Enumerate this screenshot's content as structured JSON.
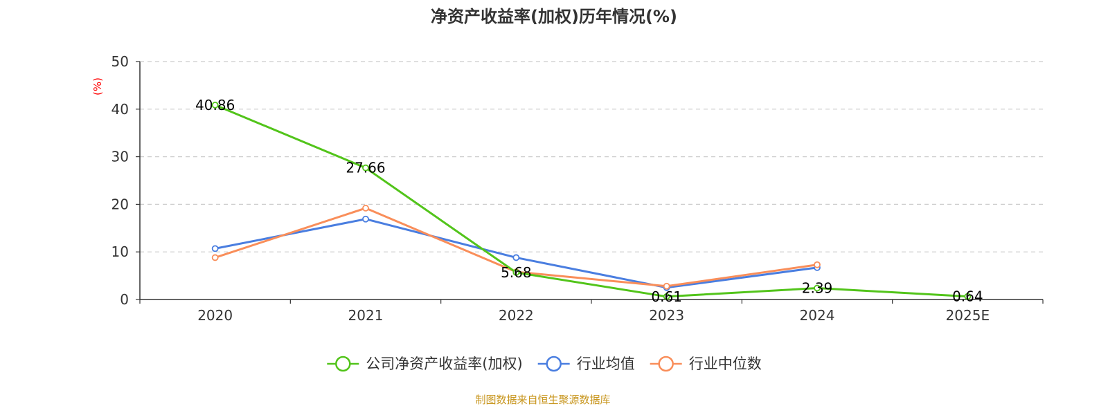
{
  "chart_data": {
    "type": "line",
    "title": "净资产收益率(加权)历年情况(%)",
    "ylabel": "(%)",
    "xlabel": "",
    "categories": [
      "2020",
      "2021",
      "2022",
      "2023",
      "2024",
      "2025E"
    ],
    "ylim": [
      0,
      50
    ],
    "yticks": [
      "0",
      "10",
      "20",
      "30",
      "40",
      "50"
    ],
    "grid": true,
    "legend_position": "bottom-center",
    "series": [
      {
        "name": "公司净资产收益率(加权)",
        "color": "#52c41a",
        "values": [
          40.86,
          27.66,
          5.68,
          0.61,
          2.39,
          0.64
        ],
        "labels": [
          "40.86",
          "27.66",
          "5.68",
          "0.61",
          "2.39",
          "0.64"
        ]
      },
      {
        "name": "行业均值",
        "color": "#4a7ee0",
        "values": [
          10.7,
          16.9,
          8.8,
          2.5,
          6.7,
          null
        ]
      },
      {
        "name": "行业中位数",
        "color": "#f98e5a",
        "values": [
          8.8,
          19.2,
          5.8,
          2.8,
          7.3,
          null
        ]
      }
    ]
  },
  "colors": {
    "ylabel": "#ff0000",
    "source": "#c8961e",
    "axis": "#333333",
    "grid": "#cccccc"
  },
  "source_text": "制图数据来自恒生聚源数据库"
}
